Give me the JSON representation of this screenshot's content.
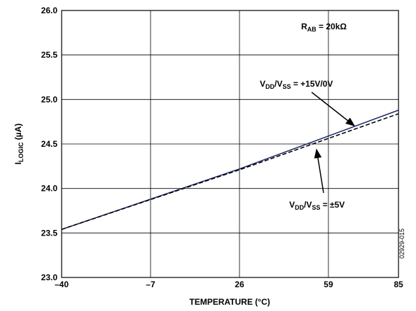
{
  "chart_data": {
    "type": "line",
    "x_label": "TEMPERATURE (°C)",
    "y_label": [
      "I",
      "LOGIC",
      " (µA)"
    ],
    "x": [
      -40,
      26,
      85
    ],
    "series": [
      {
        "color": "#1f2a6b",
        "dash": false,
        "values": [
          23.54,
          24.22,
          24.88
        ]
      },
      {
        "color": "#000000",
        "dash": true,
        "values": [
          23.54,
          24.21,
          24.84
        ]
      }
    ],
    "xlim": [
      -40,
      85
    ],
    "xticks": [
      {
        "value": -40,
        "label": "–40"
      },
      {
        "value": -7,
        "label": "–7"
      },
      26,
      59,
      85
    ],
    "ylim": [
      23,
      26
    ],
    "yticks": [
      {
        "value": 23,
        "label": "23.0"
      },
      23.5,
      {
        "value": 24,
        "label": "24.0"
      },
      24.5,
      {
        "value": 25,
        "label": "25.0"
      },
      25.5,
      {
        "value": 26,
        "label": "26.0"
      }
    ],
    "grid": true,
    "annotations": [
      [
        "R",
        "AB",
        " = 20kΩ"
      ],
      [
        "V",
        "DD",
        "/V",
        "SS",
        " = +15V/0V"
      ],
      [
        "V",
        "DD",
        "/V",
        "SS",
        " = ±5V"
      ]
    ],
    "figure_id": "02929-015"
  }
}
